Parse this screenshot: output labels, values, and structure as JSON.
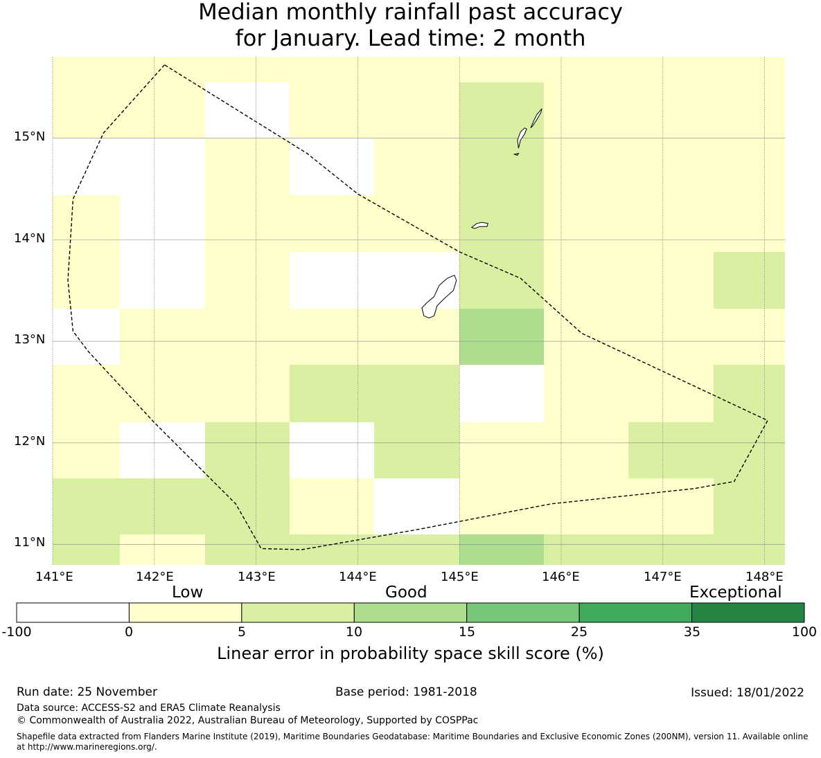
{
  "title": {
    "line1": "Median monthly rainfall past accuracy",
    "line2": "for January. Lead time: 2 month"
  },
  "map": {
    "lon_range": [
      141.0,
      148.2
    ],
    "lat_range": [
      10.8,
      15.8
    ],
    "lon_ticks": [
      141,
      142,
      143,
      144,
      145,
      146,
      147,
      148
    ],
    "lon_tick_labels": [
      "141°E",
      "142°E",
      "143°E",
      "144°E",
      "145°E",
      "146°E",
      "147°E",
      "148°E"
    ],
    "lat_ticks": [
      11,
      12,
      13,
      14,
      15
    ],
    "lat_tick_labels": [
      "11°N",
      "12°N",
      "13°N",
      "14°N",
      "15°N"
    ],
    "grid_lon_edges": [
      141.0,
      141.66,
      142.5,
      143.33,
      144.16,
      145.0,
      145.83,
      146.66,
      147.5,
      148.2
    ],
    "grid_lat_edges": [
      10.8,
      11.1,
      11.65,
      12.2,
      12.77,
      13.32,
      13.88,
      14.44,
      15.0,
      15.55,
      15.8
    ],
    "grid_classes": [
      [
        2,
        1,
        2,
        2,
        2,
        3,
        2,
        2,
        2
      ],
      [
        2,
        2,
        2,
        1,
        0,
        1,
        1,
        1,
        2
      ],
      [
        1,
        0,
        2,
        0,
        2,
        1,
        1,
        2,
        2
      ],
      [
        1,
        1,
        1,
        2,
        2,
        0,
        1,
        1,
        2
      ],
      [
        0,
        1,
        1,
        1,
        1,
        3,
        1,
        1,
        1
      ],
      [
        1,
        0,
        1,
        0,
        0,
        2,
        1,
        1,
        2
      ],
      [
        1,
        0,
        1,
        1,
        1,
        2,
        1,
        1,
        1
      ],
      [
        0,
        0,
        1,
        0,
        1,
        2,
        1,
        1,
        1
      ],
      [
        1,
        1,
        0,
        1,
        1,
        2,
        1,
        1,
        1
      ],
      [
        1,
        1,
        1,
        1,
        1,
        1,
        1,
        1,
        1
      ]
    ],
    "boundary": [
      [
        142.1,
        15.72
      ],
      [
        141.5,
        15.05
      ],
      [
        141.2,
        14.4
      ],
      [
        141.15,
        13.6
      ],
      [
        141.2,
        13.1
      ],
      [
        141.35,
        12.9
      ],
      [
        142.0,
        12.2
      ],
      [
        142.8,
        11.4
      ],
      [
        143.05,
        10.96
      ],
      [
        143.45,
        10.95
      ],
      [
        144.6,
        11.15
      ],
      [
        145.9,
        11.4
      ],
      [
        147.3,
        11.55
      ],
      [
        147.7,
        11.62
      ],
      [
        148.03,
        12.22
      ],
      [
        146.2,
        13.08
      ],
      [
        145.6,
        13.62
      ],
      [
        145.0,
        13.88
      ],
      [
        144.0,
        14.45
      ],
      [
        143.5,
        14.85
      ],
      [
        142.1,
        15.72
      ]
    ],
    "islands": [
      {
        "name": "Guam",
        "coords": [
          [
            144.95,
            13.65
          ],
          [
            144.88,
            13.62
          ],
          [
            144.8,
            13.55
          ],
          [
            144.75,
            13.44
          ],
          [
            144.68,
            13.38
          ],
          [
            144.63,
            13.33
          ],
          [
            144.65,
            13.25
          ],
          [
            144.7,
            13.23
          ],
          [
            144.75,
            13.25
          ],
          [
            144.78,
            13.35
          ],
          [
            144.85,
            13.42
          ],
          [
            144.94,
            13.5
          ],
          [
            144.97,
            13.6
          ],
          [
            144.95,
            13.65
          ]
        ]
      },
      {
        "name": "Rota",
        "coords": [
          [
            145.12,
            14.12
          ],
          [
            145.17,
            14.16
          ],
          [
            145.22,
            14.17
          ],
          [
            145.28,
            14.16
          ],
          [
            145.27,
            14.13
          ],
          [
            145.2,
            14.13
          ],
          [
            145.15,
            14.11
          ],
          [
            145.12,
            14.12
          ]
        ]
      },
      {
        "name": "Tinian",
        "coords": [
          [
            145.58,
            14.9
          ],
          [
            145.6,
            14.98
          ],
          [
            145.64,
            15.04
          ],
          [
            145.66,
            15.09
          ],
          [
            145.64,
            15.1
          ],
          [
            145.6,
            15.06
          ],
          [
            145.57,
            14.98
          ],
          [
            145.58,
            14.9
          ]
        ]
      },
      {
        "name": "Saipan",
        "coords": [
          [
            145.7,
            15.1
          ],
          [
            145.73,
            15.17
          ],
          [
            145.76,
            15.23
          ],
          [
            145.81,
            15.29
          ],
          [
            145.8,
            15.25
          ],
          [
            145.76,
            15.18
          ],
          [
            145.72,
            15.12
          ],
          [
            145.7,
            15.1
          ]
        ]
      },
      {
        "name": "Aguijan",
        "coords": [
          [
            145.54,
            14.84
          ],
          [
            145.58,
            14.85
          ],
          [
            145.57,
            14.83
          ],
          [
            145.54,
            14.84
          ]
        ]
      }
    ]
  },
  "colorbar": {
    "category_labels": [
      "Low",
      "Good",
      "Exceptional"
    ],
    "colors": [
      "#ffffff",
      "#ffffcc",
      "#d9f0a3",
      "#addd8e",
      "#78c679",
      "#41ab5d",
      "#238443"
    ],
    "boundaries": [
      "-100",
      "0",
      "5",
      "10",
      "15",
      "25",
      "35",
      "100"
    ],
    "title": "Linear error in probability space skill score (%)"
  },
  "footer": {
    "run_date": "Run date: 25 November",
    "base_period": "Base period: 1981-2018",
    "issued": "Issued: 18/01/2022",
    "data_source": "Data source: ACCESS-S2 and ERA5 Climate Reanalysis",
    "copyright": "© Commonwealth of Australia 2022, Australian Bureau of Meteorology, Supported by COSPPac",
    "shapefile_line1": "Shapefile data extracted from Flanders Marine Institute (2019), Maritime Boundaries Geodatabase: Maritime Boundaries and Exclusive Economic Zones (200NM), version 11. Available online",
    "shapefile_line2": "at http://www.marineregions.org/."
  }
}
